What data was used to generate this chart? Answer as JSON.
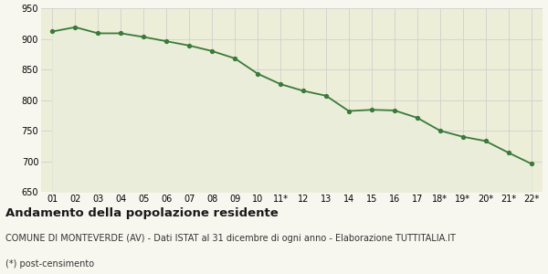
{
  "x_labels": [
    "01",
    "02",
    "03",
    "04",
    "05",
    "06",
    "07",
    "08",
    "09",
    "10",
    "11*",
    "12",
    "13",
    "14",
    "15",
    "16",
    "17",
    "18*",
    "19*",
    "20*",
    "21*",
    "22*"
  ],
  "y_values": [
    912,
    919,
    909,
    909,
    903,
    896,
    889,
    880,
    868,
    843,
    826,
    815,
    807,
    782,
    784,
    783,
    771,
    750,
    740,
    733,
    714,
    696
  ],
  "line_color": "#3a7a3a",
  "fill_color": "#eaedda",
  "marker": "o",
  "marker_size": 2.8,
  "line_width": 1.3,
  "ylim": [
    650,
    950
  ],
  "yticks": [
    650,
    700,
    750,
    800,
    850,
    900,
    950
  ],
  "grid_color": "#d0d0d0",
  "fig_bg": "#f7f7f0",
  "axes_bg": "#eceed8",
  "title": "Andamento della popolazione residente",
  "subtitle": "COMUNE DI MONTEVERDE (AV) - Dati ISTAT al 31 dicembre di ogni anno - Elaborazione TUTTITALIA.IT",
  "footnote": "(*) post-censimento",
  "title_fontsize": 9.5,
  "subtitle_fontsize": 7.0,
  "footnote_fontsize": 7.0,
  "tick_fontsize": 7.0
}
